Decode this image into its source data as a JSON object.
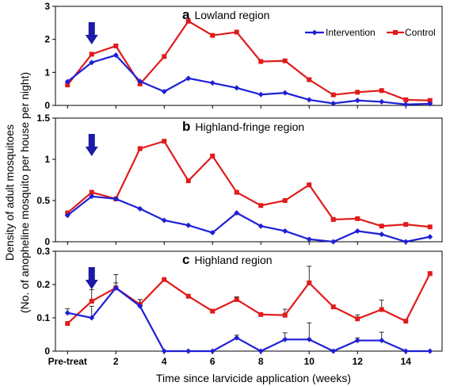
{
  "chart_data": {
    "xlabel": "Time since larvicide application (weeks)",
    "ylabel": "Density of adult mosquitoes",
    "ylabel2": "(No. of anopheline mosquito per house per night)",
    "x_tick_labels": [
      "Pre-treat",
      "2",
      "4",
      "6",
      "8",
      "10",
      "12",
      "14"
    ],
    "x_tick_values": [
      0,
      2,
      4,
      6,
      8,
      10,
      12,
      14
    ],
    "xlim": [
      -0.5,
      15.5
    ],
    "legend": {
      "placement": "top-right",
      "entries": [
        "Intervention",
        "Control"
      ]
    },
    "colors": {
      "intervention": "#1f1fd6",
      "control": "#e01b1b",
      "arrow": "#1a1aa6"
    },
    "panels": [
      {
        "type": "line",
        "letter": "a",
        "title": "Lowland region",
        "ylim": [
          0,
          3
        ],
        "yticks": [
          "0",
          "1",
          "2",
          "3"
        ],
        "ytick_values": [
          0,
          1,
          2,
          3
        ],
        "arrow_x": 1,
        "x": [
          0,
          1,
          2,
          3,
          4,
          5,
          6,
          7,
          8,
          9,
          10,
          11,
          12,
          13,
          14,
          15
        ],
        "series": [
          {
            "name": "Intervention",
            "values": [
              0.72,
              1.3,
              1.52,
              0.73,
              0.42,
              0.82,
              0.68,
              0.53,
              0.33,
              0.38,
              0.17,
              0.06,
              0.15,
              0.11,
              0.03,
              0.05
            ]
          },
          {
            "name": "Control",
            "values": [
              0.62,
              1.55,
              1.8,
              0.65,
              1.48,
              2.55,
              2.12,
              2.22,
              1.33,
              1.35,
              0.78,
              0.32,
              0.4,
              0.45,
              0.17,
              0.15
            ]
          }
        ]
      },
      {
        "type": "line",
        "letter": "b",
        "title": "Highland-fringe region",
        "ylim": [
          0,
          1.5
        ],
        "yticks": [
          "0",
          "0.5",
          "1",
          "1.5"
        ],
        "ytick_values": [
          0,
          0.5,
          1,
          1.5
        ],
        "arrow_x": 1,
        "x": [
          0,
          1,
          2,
          3,
          4,
          5,
          6,
          7,
          8,
          9,
          10,
          11,
          12,
          13,
          14,
          15
        ],
        "series": [
          {
            "name": "Intervention",
            "values": [
              0.32,
              0.55,
              0.52,
              0.4,
              0.26,
              0.2,
              0.11,
              0.35,
              0.19,
              0.13,
              0.03,
              0.0,
              0.13,
              0.09,
              0.0,
              0.06
            ]
          },
          {
            "name": "Control",
            "values": [
              0.35,
              0.6,
              0.52,
              1.13,
              1.22,
              0.74,
              1.04,
              0.6,
              0.44,
              0.5,
              0.69,
              0.27,
              0.28,
              0.19,
              0.21,
              0.18
            ]
          }
        ]
      },
      {
        "type": "line",
        "letter": "c",
        "title": "Highland region",
        "ylim": [
          0,
          0.3
        ],
        "yticks": [
          "0",
          "0.1",
          "0.2",
          "0.3"
        ],
        "ytick_values": [
          0,
          0.1,
          0.2,
          0.3
        ],
        "arrow_x": 1,
        "x": [
          0,
          1,
          2,
          3,
          4,
          5,
          6,
          7,
          8,
          9,
          10,
          11,
          12,
          13,
          14,
          15
        ],
        "series": [
          {
            "name": "Intervention",
            "values": [
              0.115,
              0.1,
              0.19,
              0.135,
              0.0,
              0.0,
              0.0,
              0.04,
              0.0,
              0.035,
              0.035,
              0.0,
              0.032,
              0.032,
              0.0,
              0.0
            ],
            "errors": [
              0.012,
              0.035,
              0.015,
              0.02,
              0,
              0,
              0,
              0.008,
              0,
              0.02,
              0.05,
              0,
              0.008,
              0.025,
              0,
              0
            ]
          },
          {
            "name": "Control",
            "values": [
              0.083,
              0.15,
              0.19,
              0.14,
              0.215,
              0.165,
              0.12,
              0.155,
              0.11,
              0.108,
              0.205,
              0.133,
              0.097,
              0.125,
              0.09,
              0.233
            ],
            "errors": [
              0,
              0.035,
              0.04,
              0.015,
              0,
              0,
              0,
              0.008,
              0,
              0.018,
              0.05,
              0,
              0.012,
              0.028,
              0,
              0
            ]
          }
        ]
      }
    ]
  }
}
